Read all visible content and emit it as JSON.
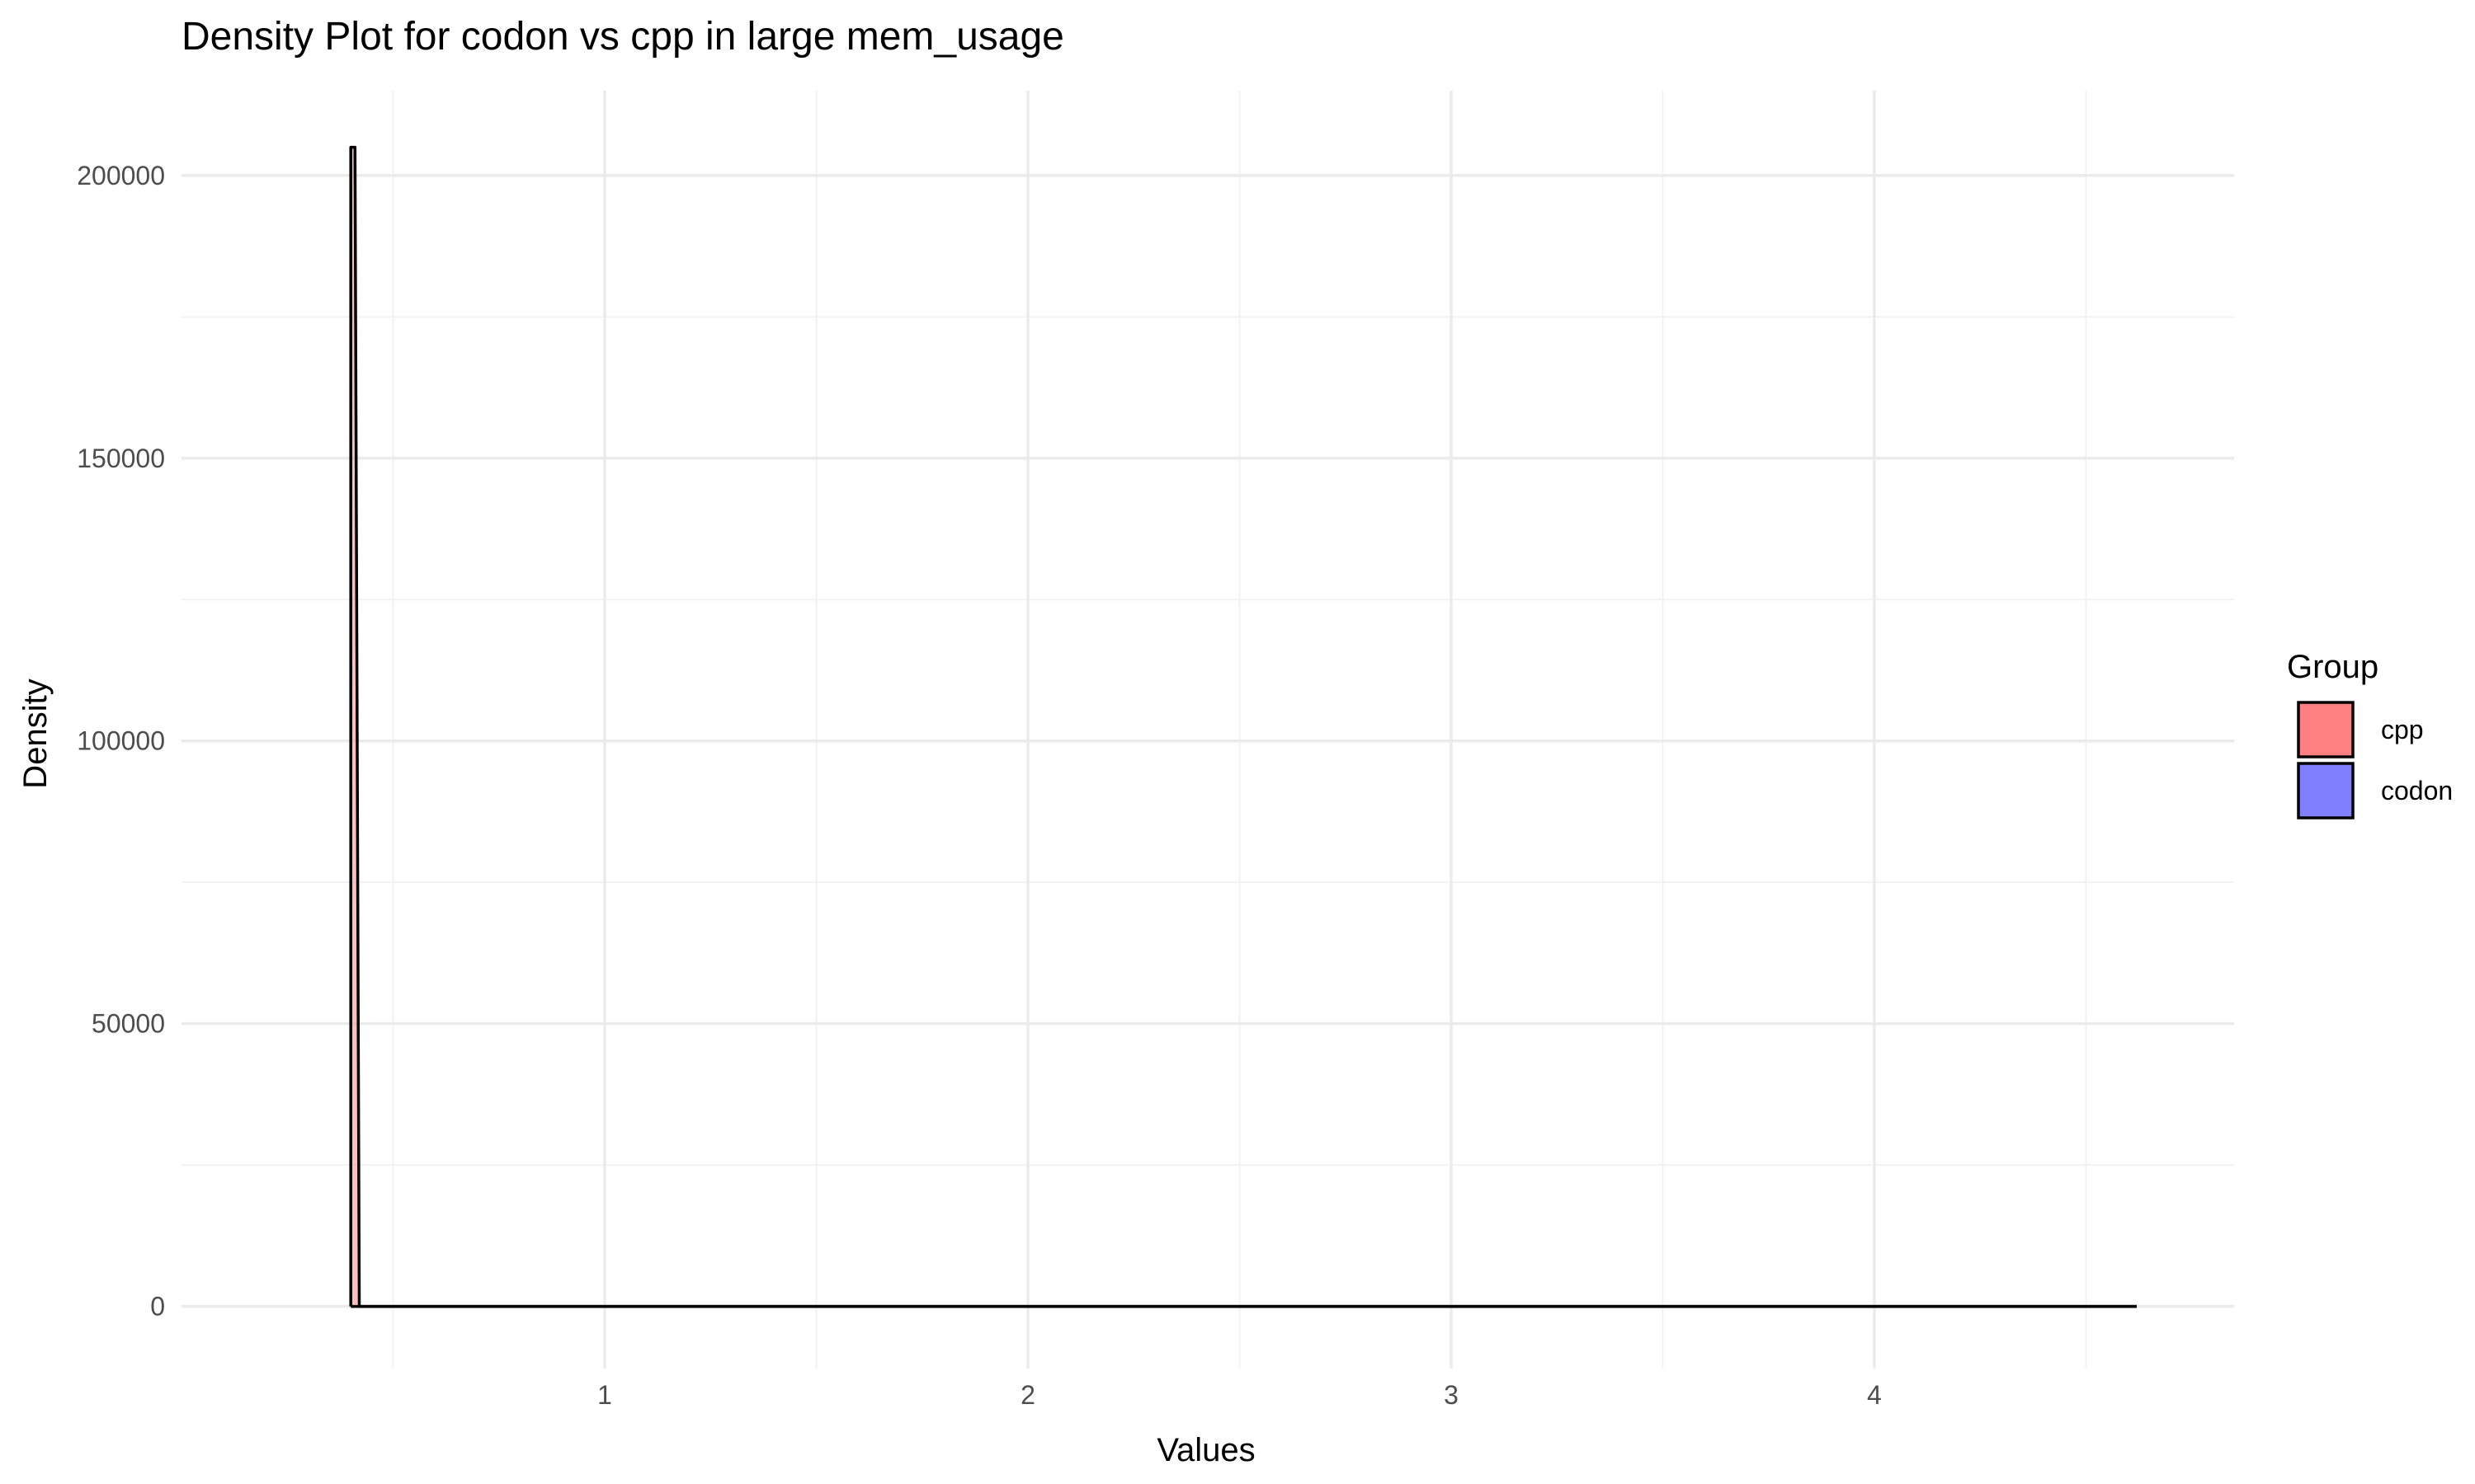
{
  "chart_data": {
    "type": "area",
    "title": "Density Plot for codon vs cpp in large mem_usage",
    "xlabel": "Values",
    "ylabel": "Density",
    "xlim": [
      0.0,
      4.85
    ],
    "ylim": [
      -11000,
      215000
    ],
    "x_ticks": [
      1,
      2,
      3,
      4
    ],
    "x_tick_labels": [
      "1",
      "2",
      "3",
      "4"
    ],
    "x_minor_ticks": [
      0.5,
      1.5,
      2.5,
      3.5,
      4.5
    ],
    "y_ticks": [
      0,
      50000,
      100000,
      150000,
      200000
    ],
    "y_tick_labels": [
      "0",
      "50000",
      "100000",
      "150000",
      "200000"
    ],
    "y_minor_ticks": [
      25000,
      75000,
      125000,
      175000
    ],
    "grid": true,
    "legend": {
      "title": "Group",
      "position": "right",
      "entries": [
        {
          "label": "cpp",
          "color": "#ff8080"
        },
        {
          "label": "codon",
          "color": "#8080ff"
        }
      ]
    },
    "series": [
      {
        "name": "cpp",
        "color": "#ff8080",
        "outline": "#000000",
        "points": [
          [
            0.4,
            0
          ],
          [
            0.4,
            205000
          ],
          [
            0.41,
            205000
          ],
          [
            0.42,
            0
          ],
          [
            4.62,
            0
          ]
        ]
      },
      {
        "name": "codon",
        "color": "#8080ff",
        "outline": "#000000",
        "points": [
          [
            0.4,
            0
          ],
          [
            4.62,
            0
          ]
        ]
      }
    ]
  }
}
